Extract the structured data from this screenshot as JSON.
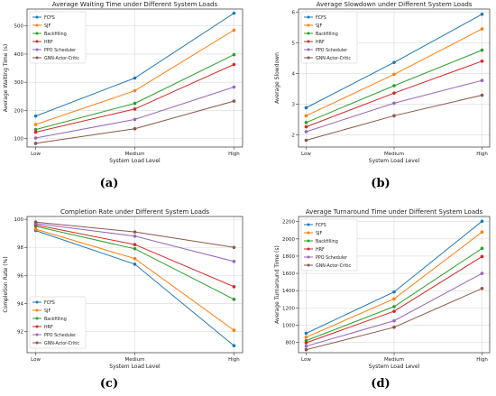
{
  "panels": [
    {
      "caption": "(a)",
      "chart_data": {
        "type": "line",
        "title": "Average Waiting Time under Different System Loads",
        "xlabel": "System Load Level",
        "ylabel": "Average Waiting Time (s)",
        "categories": [
          "Low",
          "Medium",
          "High"
        ],
        "ylim": [
          70,
          560
        ],
        "yticks": [
          100,
          200,
          300,
          400,
          500
        ],
        "grid": true,
        "legend_position": "top-left",
        "series": [
          {
            "name": "FCFS",
            "values": [
              180,
              315,
              545
            ]
          },
          {
            "name": "SJF",
            "values": [
              150,
              270,
              485
            ]
          },
          {
            "name": "Backfilling",
            "values": [
              132,
              225,
              398
            ]
          },
          {
            "name": "HRF",
            "values": [
              123,
              205,
              363
            ]
          },
          {
            "name": "PPO Scheduler",
            "values": [
              102,
              168,
              283
            ]
          },
          {
            "name": "GNN-Actor-Critic",
            "values": [
              83,
              135,
              233
            ]
          }
        ]
      }
    },
    {
      "caption": "(b)",
      "chart_data": {
        "type": "line",
        "title": "Average Slowdown under Different System Loads",
        "xlabel": "System Load Level",
        "ylabel": "Average Slowdown",
        "categories": [
          "Low",
          "Medium",
          "High"
        ],
        "ylim": [
          1.6,
          6.1
        ],
        "yticks": [
          2,
          3,
          4,
          5,
          6
        ],
        "grid": true,
        "legend_position": "top-left",
        "series": [
          {
            "name": "FCFS",
            "values": [
              2.88,
              4.36,
              5.93
            ]
          },
          {
            "name": "SJF",
            "values": [
              2.62,
              3.97,
              5.45
            ]
          },
          {
            "name": "Backfilling",
            "values": [
              2.4,
              3.6,
              4.76
            ]
          },
          {
            "name": "HRF",
            "values": [
              2.26,
              3.36,
              4.4
            ]
          },
          {
            "name": "PPO Scheduler",
            "values": [
              2.1,
              3.03,
              3.77
            ]
          },
          {
            "name": "GNN-Actor-Critic",
            "values": [
              1.82,
              2.62,
              3.29
            ]
          }
        ]
      }
    },
    {
      "caption": "(c)",
      "chart_data": {
        "type": "line",
        "title": "Completion Rate under Different System Loads",
        "xlabel": "System Load Level",
        "ylabel": "Completion Rate (%)",
        "categories": [
          "Low",
          "Medium",
          "High"
        ],
        "ylim": [
          90.5,
          100.2
        ],
        "yticks": [
          92,
          94,
          96,
          98,
          100
        ],
        "grid": true,
        "legend_position": "bottom-left",
        "series": [
          {
            "name": "FCFS",
            "values": [
              99.2,
              96.8,
              91.0
            ]
          },
          {
            "name": "SJF",
            "values": [
              99.3,
              97.2,
              92.1
            ]
          },
          {
            "name": "Backfilling",
            "values": [
              99.5,
              97.9,
              94.3
            ]
          },
          {
            "name": "HRF",
            "values": [
              99.6,
              98.2,
              95.2
            ]
          },
          {
            "name": "PPO Scheduler",
            "values": [
              99.7,
              98.8,
              97.0
            ]
          },
          {
            "name": "GNN-Actor-Critic",
            "values": [
              99.8,
              99.1,
              98.0
            ]
          }
        ]
      }
    },
    {
      "caption": "(d)",
      "chart_data": {
        "type": "line",
        "title": "Average Turnaround Time under Different System Loads",
        "xlabel": "System Load Level",
        "ylabel": "Average Turnaround Time (s)",
        "categories": [
          "Low",
          "Medium",
          "High"
        ],
        "ylim": [
          680,
          2260
        ],
        "yticks": [
          800,
          1000,
          1200,
          1400,
          1600,
          1800,
          2000,
          2200
        ],
        "grid": true,
        "legend_position": "top-left",
        "series": [
          {
            "name": "FCFS",
            "values": [
              905,
              1385,
              2205
            ]
          },
          {
            "name": "SJF",
            "values": [
              860,
              1305,
              2080
            ]
          },
          {
            "name": "Backfilling",
            "values": [
              820,
              1215,
              1890
            ]
          },
          {
            "name": "HRF",
            "values": [
              795,
              1160,
              1795
            ]
          },
          {
            "name": "PPO Scheduler",
            "values": [
              755,
              1050,
              1600
            ]
          },
          {
            "name": "GNN-Actor-Critic",
            "values": [
              715,
              975,
              1425
            ]
          }
        ]
      }
    }
  ],
  "colors": [
    "#1f77b4",
    "#ff7f0e",
    "#2ca02c",
    "#d62728",
    "#9467bd",
    "#8c564b"
  ]
}
